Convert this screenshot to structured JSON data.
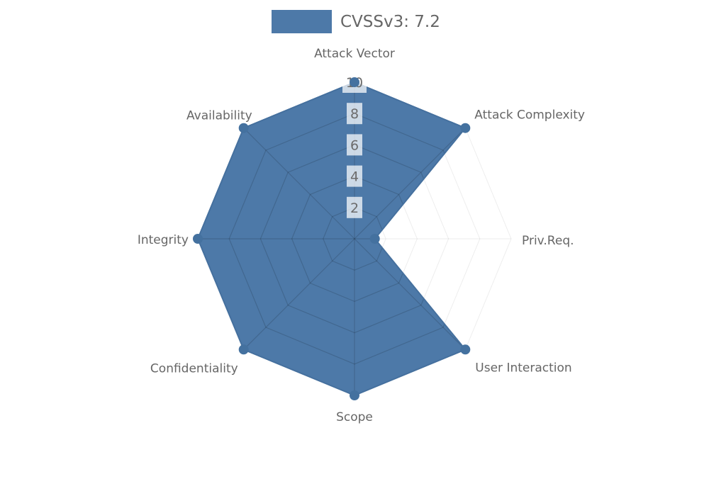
{
  "legend": {
    "label": "CVSSv3: 7.2"
  },
  "chart_data": {
    "type": "radar",
    "title": "CVSSv3: 7.2",
    "legend_position": "top",
    "grid": "polygon",
    "categories": [
      "Attack Vector",
      "Attack Complexity",
      "Priv.Req.",
      "User Interaction",
      "Scope",
      "Confidentiality",
      "Integrity",
      "Availability"
    ],
    "series": [
      {
        "name": "CVSSv3: 7.2",
        "values": [
          10,
          10,
          1.3,
          10,
          10,
          10,
          10,
          10
        ]
      }
    ],
    "ticks": [
      "2",
      "4",
      "6",
      "8",
      "10"
    ],
    "tick_values": [
      2,
      4,
      6,
      8,
      10
    ],
    "axis_min": 0,
    "axis_max": 10,
    "colors": {
      "fill": "#4d79a8",
      "line": "#45709e",
      "marker": "#44719f",
      "inner_grid": "rgba(0,0,0,0.15)",
      "outer_grid": "rgba(0,0,0,0.07)",
      "label_text": "#666666",
      "tick_text": "#6b6b6b",
      "tick_backdrop": "rgba(255,255,255,0.72)",
      "legend_text": "#666666"
    }
  }
}
